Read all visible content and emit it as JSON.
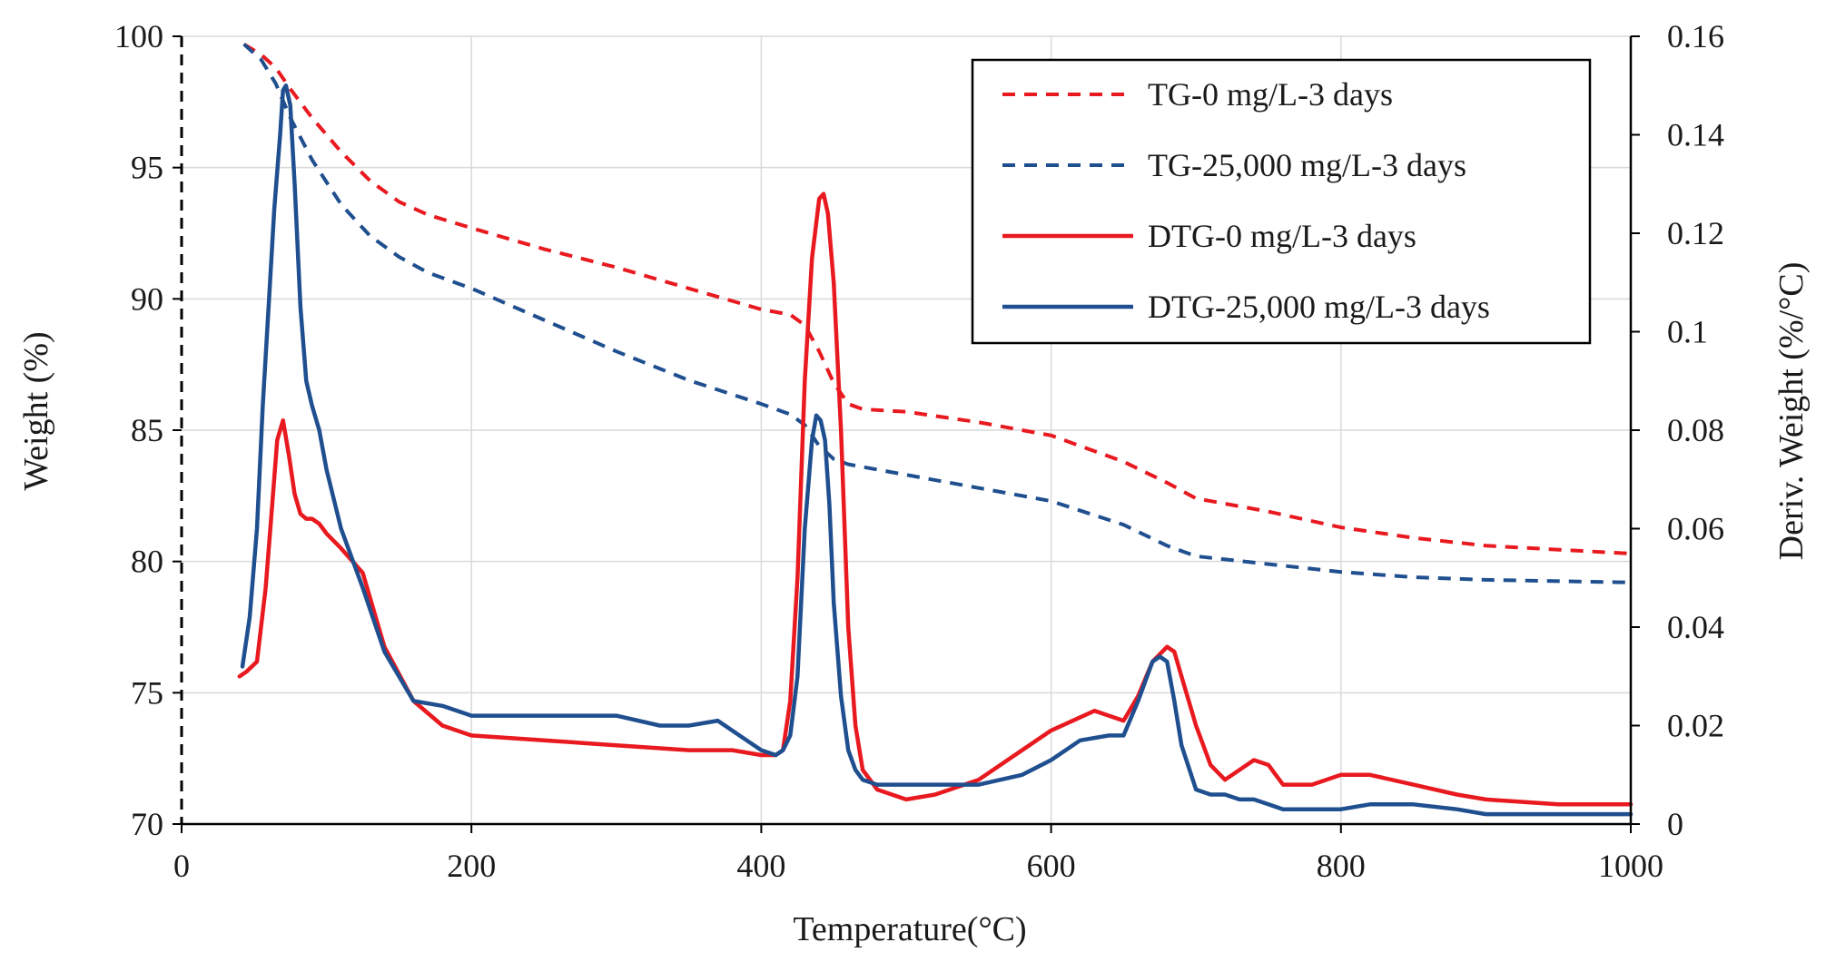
{
  "chart_data": {
    "type": "line",
    "xlabel": "Temperature(°C)",
    "ylabel_left": "Weight  (%)",
    "ylabel_right": "Deriv.  Weight  (%/°C)",
    "xlim": [
      0,
      1000
    ],
    "ylim_left": [
      70,
      100
    ],
    "ylim_right": [
      0,
      0.16
    ],
    "x_ticks": [
      "0",
      "200",
      "400",
      "600",
      "800",
      "1000"
    ],
    "y_left_ticks": [
      "70",
      "75",
      "80",
      "85",
      "90",
      "95",
      "100"
    ],
    "y_right_ticks": [
      "0",
      "0.02",
      "0.04",
      "0.06",
      "0.08",
      "0.1",
      "0.12",
      "0.14",
      "0.16"
    ],
    "grid": true,
    "legend_position": "top-right",
    "series": [
      {
        "name": "TG-0 mg/L-3 days",
        "axis": "left",
        "style": "dashed",
        "color": "#e8191f",
        "x": [
          43,
          55,
          65,
          75,
          90,
          110,
          130,
          150,
          170,
          200,
          250,
          300,
          350,
          400,
          420,
          430,
          440,
          450,
          460,
          470,
          500,
          550,
          600,
          650,
          680,
          700,
          750,
          800,
          850,
          900,
          1000
        ],
        "y": [
          99.7,
          99.3,
          98.8,
          98.0,
          96.9,
          95.6,
          94.5,
          93.7,
          93.2,
          92.7,
          91.9,
          91.2,
          90.4,
          89.6,
          89.4,
          89.0,
          88.0,
          86.8,
          86.0,
          85.8,
          85.7,
          85.3,
          84.8,
          83.8,
          83.0,
          82.4,
          81.9,
          81.3,
          80.9,
          80.6,
          80.3
        ]
      },
      {
        "name": "TG-25,000 mg/L-3 days",
        "axis": "left",
        "style": "dashed",
        "color": "#1f4f8f",
        "x": [
          43,
          55,
          65,
          75,
          90,
          110,
          130,
          150,
          170,
          200,
          250,
          300,
          350,
          400,
          420,
          430,
          440,
          450,
          460,
          470,
          500,
          550,
          600,
          650,
          680,
          700,
          750,
          800,
          850,
          900,
          1000
        ],
        "y": [
          99.7,
          99.1,
          98.2,
          96.9,
          95.3,
          93.6,
          92.4,
          91.6,
          91.0,
          90.4,
          89.2,
          88.0,
          86.9,
          86.0,
          85.6,
          85.2,
          84.4,
          83.9,
          83.7,
          83.6,
          83.3,
          82.8,
          82.3,
          81.4,
          80.6,
          80.2,
          79.9,
          79.6,
          79.4,
          79.3,
          79.2
        ]
      },
      {
        "name": "DTG-0 mg/L-3 days",
        "axis": "right",
        "style": "solid",
        "color": "#e8191f",
        "x": [
          40,
          45,
          52,
          58,
          62,
          66,
          70,
          74,
          78,
          82,
          86,
          90,
          95,
          100,
          110,
          125,
          140,
          160,
          180,
          200,
          250,
          300,
          350,
          380,
          400,
          410,
          415,
          420,
          425,
          430,
          435,
          440,
          443,
          446,
          450,
          455,
          460,
          465,
          470,
          480,
          500,
          520,
          550,
          600,
          630,
          650,
          660,
          670,
          680,
          685,
          690,
          700,
          710,
          720,
          730,
          740,
          750,
          760,
          780,
          800,
          820,
          850,
          880,
          900,
          950,
          1000
        ],
        "y": [
          0.03,
          0.031,
          0.033,
          0.048,
          0.063,
          0.078,
          0.082,
          0.075,
          0.067,
          0.063,
          0.062,
          0.062,
          0.061,
          0.059,
          0.056,
          0.051,
          0.036,
          0.025,
          0.02,
          0.018,
          0.017,
          0.016,
          0.015,
          0.015,
          0.014,
          0.014,
          0.015,
          0.025,
          0.05,
          0.09,
          0.115,
          0.127,
          0.128,
          0.124,
          0.11,
          0.08,
          0.04,
          0.02,
          0.011,
          0.007,
          0.005,
          0.006,
          0.009,
          0.019,
          0.023,
          0.021,
          0.026,
          0.033,
          0.036,
          0.035,
          0.03,
          0.02,
          0.012,
          0.009,
          0.011,
          0.013,
          0.012,
          0.008,
          0.008,
          0.01,
          0.01,
          0.008,
          0.006,
          0.005,
          0.004,
          0.004
        ]
      },
      {
        "name": "DTG-25,000 mg/L-3 days",
        "axis": "right",
        "style": "solid",
        "color": "#1f4f8f",
        "x": [
          42,
          47,
          52,
          56,
          60,
          64,
          68,
          70,
          72,
          75,
          78,
          82,
          86,
          90,
          95,
          100,
          110,
          125,
          140,
          160,
          180,
          200,
          250,
          300,
          330,
          350,
          370,
          390,
          400,
          410,
          415,
          420,
          425,
          430,
          435,
          438,
          441,
          444,
          447,
          450,
          455,
          460,
          465,
          470,
          480,
          500,
          550,
          580,
          600,
          620,
          640,
          650,
          660,
          670,
          675,
          680,
          685,
          690,
          700,
          710,
          720,
          730,
          740,
          750,
          760,
          780,
          800,
          820,
          850,
          880,
          900,
          950,
          1000
        ],
        "y": [
          0.032,
          0.042,
          0.06,
          0.085,
          0.105,
          0.125,
          0.14,
          0.149,
          0.15,
          0.146,
          0.13,
          0.105,
          0.09,
          0.085,
          0.08,
          0.072,
          0.06,
          0.048,
          0.035,
          0.025,
          0.024,
          0.022,
          0.022,
          0.022,
          0.02,
          0.02,
          0.021,
          0.017,
          0.015,
          0.014,
          0.015,
          0.018,
          0.03,
          0.06,
          0.078,
          0.083,
          0.082,
          0.078,
          0.065,
          0.045,
          0.026,
          0.015,
          0.011,
          0.009,
          0.008,
          0.008,
          0.008,
          0.01,
          0.013,
          0.017,
          0.018,
          0.018,
          0.025,
          0.033,
          0.034,
          0.033,
          0.025,
          0.016,
          0.007,
          0.006,
          0.006,
          0.005,
          0.005,
          0.004,
          0.003,
          0.003,
          0.003,
          0.004,
          0.004,
          0.003,
          0.002,
          0.002,
          0.002
        ]
      }
    ]
  }
}
